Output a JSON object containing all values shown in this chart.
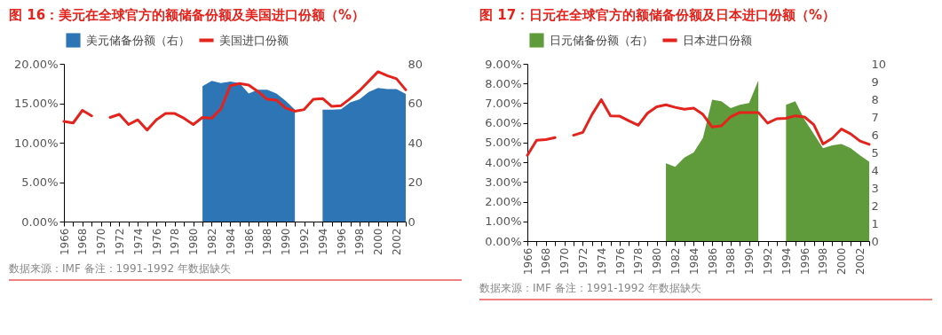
{
  "chart_data": [
    {
      "type": "line",
      "title": "图 16：美元在全球官方的额储备份额及美国进口份额（%）",
      "annotations": [
        "数据来源：IMF 备注：1991-1992 年数据缺失"
      ],
      "categories": [
        "1966",
        null,
        "1968",
        null,
        "1970",
        null,
        "1972",
        null,
        "1974",
        null,
        "1976",
        null,
        "1978",
        null,
        "1980",
        null,
        "1982",
        null,
        "1984",
        null,
        "1986",
        null,
        "1988",
        null,
        "1990",
        null,
        "1992",
        null,
        "1994",
        null,
        "1996",
        null,
        "1998",
        null,
        "2000",
        null,
        "2002",
        null
      ],
      "series": [
        {
          "name": "美元储备份额（右）",
          "type": "area",
          "axis": "y2",
          "color": "#2e75b6",
          "values": [
            null,
            null,
            null,
            null,
            null,
            null,
            null,
            null,
            null,
            null,
            null,
            null,
            null,
            null,
            null,
            68.7,
            71.3,
            70.2,
            71.0,
            70.2,
            65.0,
            66.9,
            66.9,
            65.0,
            61.2,
            56.7,
            null,
            null,
            56.7,
            56.7,
            57.0,
            60.5,
            62.0,
            65.7,
            67.7,
            67.2,
            67.2,
            64.7
          ]
        },
        {
          "name": "美国进口份额",
          "color": "#e3231c",
          "values": [
            12.7,
            12.5,
            14.1,
            13.4,
            null,
            13.2,
            13.6,
            12.3,
            12.9,
            11.6,
            12.9,
            13.7,
            13.7,
            13.1,
            12.3,
            13.2,
            13.1,
            14.3,
            17.2,
            17.5,
            17.3,
            16.5,
            15.5,
            15.4,
            14.4,
            14.0,
            14.2,
            15.5,
            15.6,
            14.6,
            14.7,
            15.6,
            16.6,
            17.8,
            19.0,
            18.5,
            18.1,
            16.7
          ]
        }
      ],
      "ylim": [
        0,
        20
      ],
      "yticks": [
        {
          "value": 0,
          "label": "0.00%"
        },
        {
          "value": 5,
          "label": "5.00%"
        },
        {
          "value": 10,
          "label": "10.00%"
        },
        {
          "value": 15,
          "label": "15.00%"
        },
        {
          "value": 20,
          "label": "20.00%"
        }
      ],
      "y2lim": [
        0,
        80
      ],
      "y2ticks": [
        0,
        20,
        40,
        60,
        80
      ],
      "legend": "top",
      "grid": false
    },
    {
      "type": "line",
      "title": "图 17：日元在全球官方的额储备份额及日本进口份额（%）",
      "annotations": [
        "数据来源：IMF 备注：1991-1992 年数据缺失"
      ],
      "categories": [
        "1966",
        null,
        "1968",
        null,
        "1970",
        null,
        "1972",
        null,
        "1974",
        null,
        "1976",
        null,
        "1978",
        null,
        "1980",
        null,
        "1982",
        null,
        "1984",
        null,
        "1986",
        null,
        "1988",
        null,
        "1990",
        null,
        "1992",
        null,
        "1994",
        null,
        "1996",
        null,
        "1998",
        null,
        "2000",
        null,
        "2002",
        null
      ],
      "series": [
        {
          "name": "日元储备份额（右）",
          "type": "area",
          "axis": "y2",
          "color": "#5f9b3a",
          "values": [
            null,
            null,
            null,
            null,
            null,
            null,
            null,
            null,
            null,
            null,
            null,
            null,
            null,
            null,
            null,
            4.39,
            4.19,
            4.71,
            5.0,
            5.81,
            7.98,
            7.89,
            7.5,
            7.69,
            7.79,
            9.06,
            null,
            null,
            7.69,
            7.89,
            6.85,
            6.05,
            5.24,
            5.4,
            5.48,
            5.24,
            4.84,
            4.48
          ]
        },
        {
          "name": "日本进口份额",
          "color": "#e3231c",
          "values": [
            4.35,
            5.12,
            5.15,
            5.25,
            null,
            5.37,
            5.52,
            6.43,
            7.18,
            6.36,
            6.34,
            6.1,
            5.88,
            6.49,
            6.82,
            6.92,
            6.79,
            6.69,
            6.75,
            6.43,
            5.79,
            5.85,
            6.31,
            6.53,
            6.53,
            6.53,
            5.99,
            6.21,
            6.23,
            6.36,
            6.3,
            5.91,
            4.93,
            5.22,
            5.69,
            5.44,
            5.08,
            4.91
          ]
        }
      ],
      "ylim": [
        0,
        9
      ],
      "yticks": [
        {
          "value": 0,
          "label": "0.00%"
        },
        {
          "value": 1,
          "label": "1.00%"
        },
        {
          "value": 2,
          "label": "2.00%"
        },
        {
          "value": 3,
          "label": "3.00%"
        },
        {
          "value": 4,
          "label": "4.00%"
        },
        {
          "value": 5,
          "label": "5.00%"
        },
        {
          "value": 6,
          "label": "6.00%"
        },
        {
          "value": 7,
          "label": "7.00%"
        },
        {
          "value": 8,
          "label": "8.00%"
        },
        {
          "value": 9,
          "label": "9.00%"
        }
      ],
      "y2lim": [
        0,
        10
      ],
      "y2ticks": [
        0,
        1,
        2,
        3,
        4,
        5,
        6,
        7,
        8,
        9,
        10
      ],
      "legend": "top",
      "grid": false
    }
  ]
}
